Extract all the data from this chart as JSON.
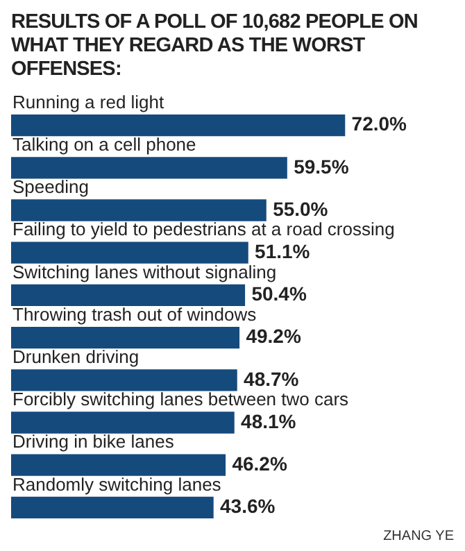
{
  "chart_data": {
    "type": "bar",
    "orientation": "horizontal",
    "title": "RESULTS OF A POLL OF 10,682 PEOPLE ON WHAT THEY REGARD AS THE WORST OFFENSES:",
    "categories": [
      "Running a red light",
      "Talking on a cell phone",
      "Speeding",
      "Failing to yield to pedestrians at a road crossing",
      "Switching lanes without signaling",
      "Throwing trash out of windows",
      "Drunken driving",
      "Forcibly switching lanes between two cars",
      "Driving in bike lanes",
      "Randomly switching lanes"
    ],
    "values": [
      72.0,
      59.5,
      55.0,
      51.1,
      50.4,
      49.2,
      48.7,
      48.1,
      46.2,
      43.6
    ],
    "value_labels": [
      "72.0%",
      "59.5%",
      "55.0%",
      "51.1%",
      "50.4%",
      "49.2%",
      "48.7%",
      "48.1%",
      "46.2%",
      "43.6%"
    ],
    "color": "#154a7c",
    "annotations": [
      "ZHANG YE"
    ]
  }
}
